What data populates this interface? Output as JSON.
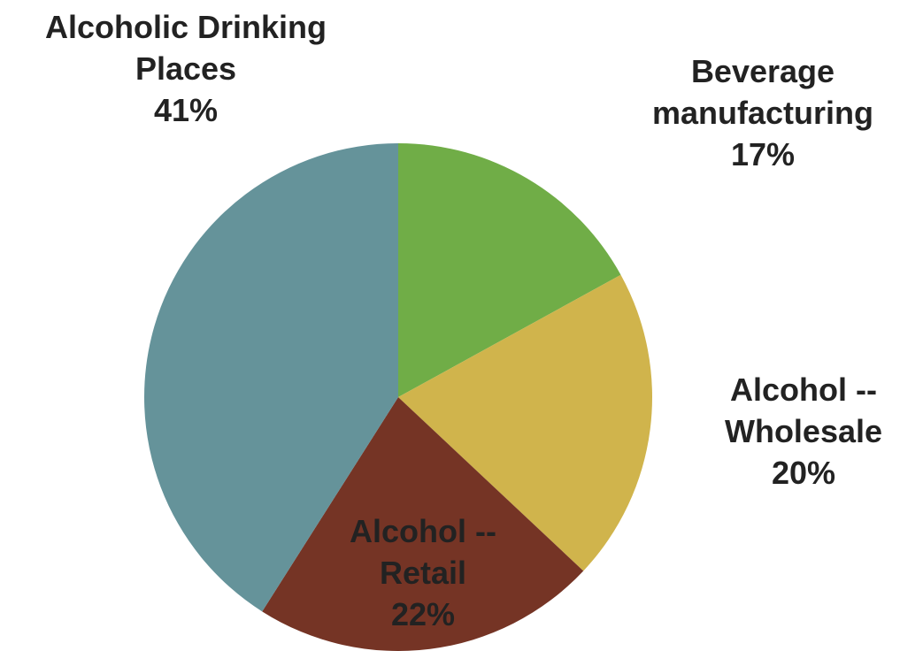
{
  "chart_data": {
    "type": "pie",
    "categories": [
      "Beverage manufacturing",
      "Alcohol -- Wholesale",
      "Alcohol -- Retail",
      "Alcoholic Drinking Places"
    ],
    "values": [
      17,
      20,
      22,
      41
    ],
    "value_labels": [
      "17%",
      "20%",
      "22%",
      "41%"
    ],
    "colors": [
      "#70ad47",
      "#d0b44c",
      "#753425",
      "#65939a"
    ]
  }
}
